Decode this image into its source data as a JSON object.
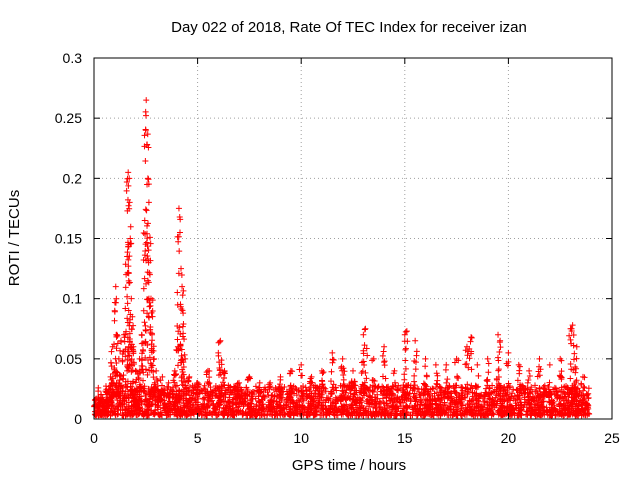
{
  "chart_data": {
    "type": "scatter",
    "title": "Day 022 of 2018, Rate Of TEC Index for receiver izan",
    "xlabel": "GPS time / hours",
    "ylabel": "ROTI / TECUs",
    "xlim": [
      0,
      25
    ],
    "ylim": [
      0,
      0.3
    ],
    "x_ticks": [
      0,
      5,
      10,
      15,
      20,
      25
    ],
    "y_ticks": [
      0,
      0.05,
      0.1,
      0.15,
      0.2,
      0.25,
      0.3
    ],
    "x_tick_labels": [
      "0",
      "5",
      "10",
      "15",
      "20",
      "25"
    ],
    "y_tick_labels": [
      "0",
      "0.05",
      "0.1",
      "0.15",
      "0.2",
      "0.25",
      "0.3"
    ],
    "grid": true,
    "marker": "+",
    "color": "#ff0000",
    "series": [
      {
        "name": "ROTI",
        "points": [
          [
            0.2,
            0.012
          ],
          [
            0.4,
            0.018
          ],
          [
            0.6,
            0.022
          ],
          [
            0.8,
            0.035
          ],
          [
            0.9,
            0.06
          ],
          [
            1.0,
            0.09
          ],
          [
            1.05,
            0.11
          ],
          [
            1.1,
            0.07
          ],
          [
            1.2,
            0.05
          ],
          [
            1.3,
            0.065
          ],
          [
            1.45,
            0.07
          ],
          [
            1.55,
            0.12
          ],
          [
            1.6,
            0.135
          ],
          [
            1.65,
            0.205
          ],
          [
            1.7,
            0.2
          ],
          [
            1.72,
            0.18
          ],
          [
            1.75,
            0.15
          ],
          [
            1.8,
            0.1
          ],
          [
            1.85,
            0.085
          ],
          [
            1.9,
            0.06
          ],
          [
            2.0,
            0.04
          ],
          [
            2.2,
            0.05
          ],
          [
            2.3,
            0.07
          ],
          [
            2.4,
            0.09
          ],
          [
            2.45,
            0.165
          ],
          [
            2.5,
            0.24
          ],
          [
            2.52,
            0.265
          ],
          [
            2.55,
            0.228
          ],
          [
            2.6,
            0.2
          ],
          [
            2.65,
            0.18
          ],
          [
            2.7,
            0.12
          ],
          [
            2.75,
            0.1
          ],
          [
            2.8,
            0.07
          ],
          [
            2.9,
            0.05
          ],
          [
            3.0,
            0.04
          ],
          [
            3.3,
            0.035
          ],
          [
            3.6,
            0.03
          ],
          [
            3.9,
            0.04
          ],
          [
            4.05,
            0.06
          ],
          [
            4.1,
            0.175
          ],
          [
            4.15,
            0.155
          ],
          [
            4.2,
            0.125
          ],
          [
            4.25,
            0.11
          ],
          [
            4.3,
            0.088
          ],
          [
            4.4,
            0.05
          ],
          [
            4.6,
            0.035
          ],
          [
            5.0,
            0.03
          ],
          [
            5.5,
            0.04
          ],
          [
            6.0,
            0.055
          ],
          [
            6.1,
            0.065
          ],
          [
            6.3,
            0.04
          ],
          [
            7.0,
            0.03
          ],
          [
            7.5,
            0.035
          ],
          [
            8.0,
            0.03
          ],
          [
            8.5,
            0.03
          ],
          [
            9.0,
            0.035
          ],
          [
            9.5,
            0.04
          ],
          [
            10.0,
            0.045
          ],
          [
            10.5,
            0.035
          ],
          [
            11.0,
            0.04
          ],
          [
            11.5,
            0.055
          ],
          [
            12.0,
            0.05
          ],
          [
            12.5,
            0.04
          ],
          [
            13.0,
            0.07
          ],
          [
            13.1,
            0.075
          ],
          [
            13.5,
            0.05
          ],
          [
            14.0,
            0.06
          ],
          [
            14.5,
            0.04
          ],
          [
            15.0,
            0.07
          ],
          [
            15.1,
            0.073
          ],
          [
            15.5,
            0.065
          ],
          [
            16.0,
            0.05
          ],
          [
            16.5,
            0.045
          ],
          [
            17.0,
            0.045
          ],
          [
            17.5,
            0.05
          ],
          [
            18.0,
            0.06
          ],
          [
            18.2,
            0.068
          ],
          [
            18.5,
            0.045
          ],
          [
            19.0,
            0.05
          ],
          [
            19.5,
            0.07
          ],
          [
            19.6,
            0.065
          ],
          [
            20.0,
            0.055
          ],
          [
            20.5,
            0.045
          ],
          [
            21.0,
            0.04
          ],
          [
            21.5,
            0.05
          ],
          [
            22.0,
            0.045
          ],
          [
            22.5,
            0.05
          ],
          [
            23.0,
            0.075
          ],
          [
            23.1,
            0.078
          ],
          [
            23.3,
            0.06
          ],
          [
            23.6,
            0.035
          ],
          [
            23.8,
            0.02
          ]
        ]
      }
    ],
    "noise_floor": {
      "x_range": [
        0.0,
        23.9
      ],
      "y_range": [
        0.003,
        0.028
      ]
    }
  }
}
